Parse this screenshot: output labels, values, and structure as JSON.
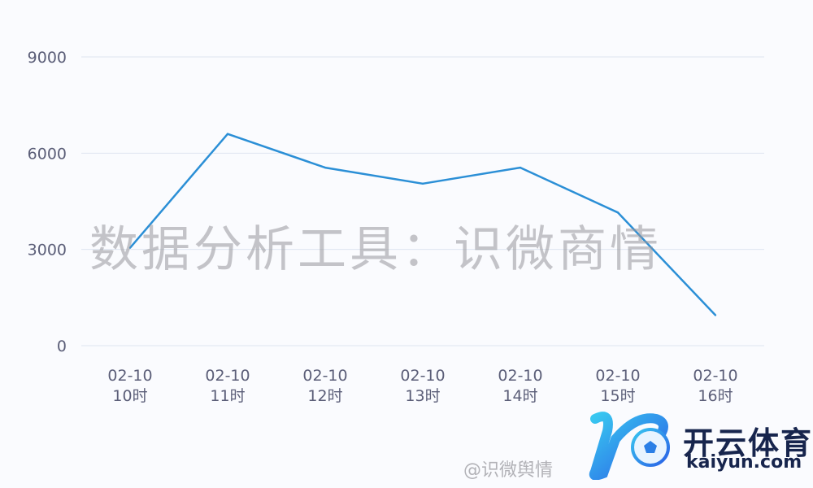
{
  "chart_data": {
    "type": "line",
    "title": "",
    "xlabel": "",
    "ylabel": "",
    "categories": [
      [
        "02-10",
        "10时"
      ],
      [
        "02-10",
        "11时"
      ],
      [
        "02-10",
        "12时"
      ],
      [
        "02-10",
        "13时"
      ],
      [
        "02-10",
        "14时"
      ],
      [
        "02-10",
        "15时"
      ],
      [
        "02-10",
        "16时"
      ]
    ],
    "series": [
      {
        "values": [
          3050,
          6600,
          5550,
          5050,
          5550,
          4150,
          950
        ],
        "color": "#2b8fd6"
      }
    ],
    "yticks": [
      "0",
      "3000",
      "6000",
      "9000"
    ],
    "ylim": [
      0,
      9000
    ],
    "grid": true,
    "legend": "none"
  },
  "watermark": "数据分析工具：识微商情",
  "logo": {
    "title": "开云体育",
    "url": "kaiyun.com",
    "overlay": "@识微舆情"
  }
}
